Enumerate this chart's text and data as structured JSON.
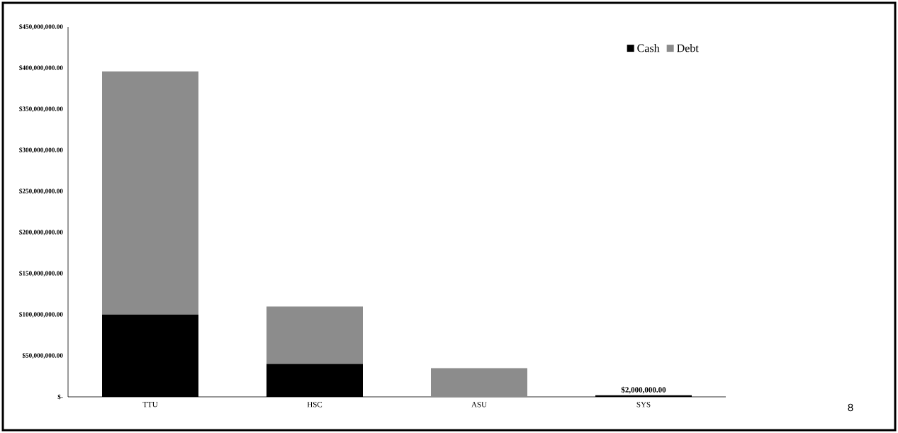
{
  "chart_data": {
    "type": "bar",
    "stacked": true,
    "categories": [
      "TTU",
      "HSC",
      "ASU",
      "SYS"
    ],
    "series": [
      {
        "name": "Cash",
        "color": "#000000",
        "values": [
          100000000,
          40000000,
          0,
          2000000
        ],
        "value_labels": [
          null,
          null,
          null,
          "$2,000,000.00"
        ]
      },
      {
        "name": "Debt",
        "color": "#8c8c8c",
        "values": [
          296000000,
          70000000,
          35000000,
          0
        ]
      }
    ],
    "ylim": [
      0,
      450000000
    ],
    "yticks": [
      {
        "value": 0,
        "label": "$-"
      },
      {
        "value": 50000000,
        "label": "$50,000,000.00"
      },
      {
        "value": 100000000,
        "label": "$100,000,000.00"
      },
      {
        "value": 150000000,
        "label": "$150,000,000.00"
      },
      {
        "value": 200000000,
        "label": "$200,000,000.00"
      },
      {
        "value": 250000000,
        "label": "$250,000,000.00"
      },
      {
        "value": 300000000,
        "label": "$300,000,000.00"
      },
      {
        "value": 350000000,
        "label": "$350,000,000.00"
      },
      {
        "value": 400000000,
        "label": "$400,000,000.00"
      },
      {
        "value": 450000000,
        "label": "$450,000,000.00"
      }
    ],
    "legend": "top right",
    "annotations": [
      "8"
    ]
  }
}
